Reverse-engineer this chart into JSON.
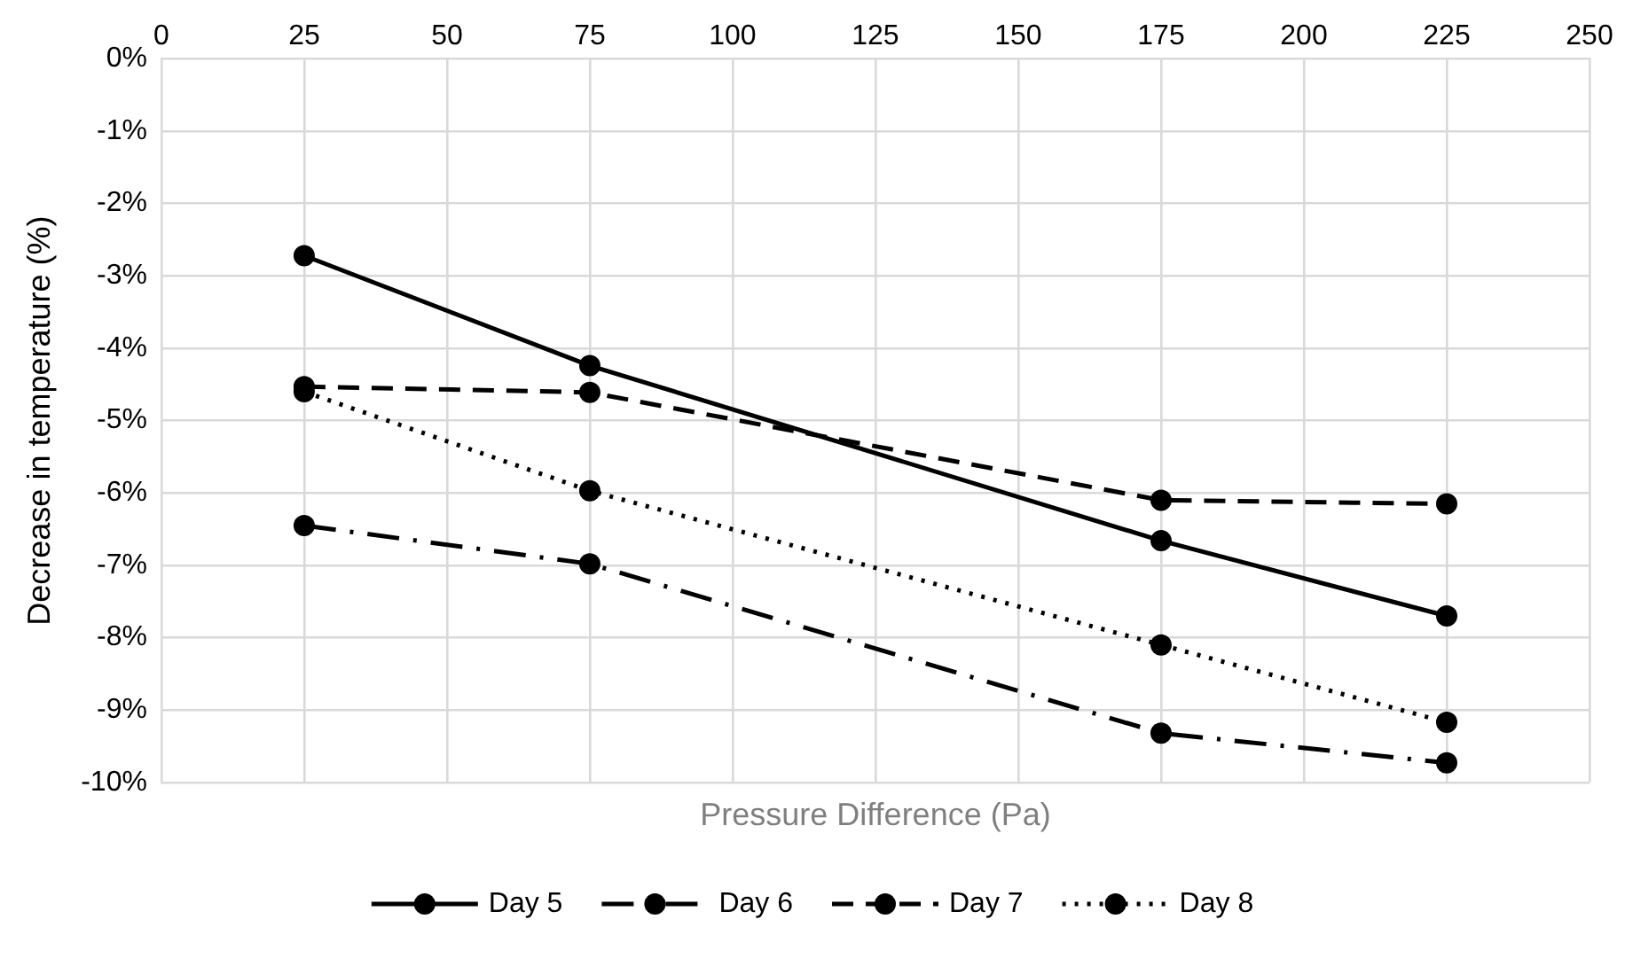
{
  "chart_data": {
    "type": "line",
    "xlabel": "Pressure Difference (Pa)",
    "ylabel": "Decrease in temperature (%)",
    "x": [
      25,
      75,
      175,
      225
    ],
    "series": [
      {
        "name": "Day 5",
        "color": "#000000",
        "line_style": "solid",
        "values": [
          -2.72,
          -4.24,
          -6.66,
          -7.7
        ]
      },
      {
        "name": "Day 6",
        "color": "#000000",
        "line_style": "dashdot",
        "values": [
          -6.45,
          -6.98,
          -9.32,
          -9.73
        ]
      },
      {
        "name": "Day 7",
        "color": "#000000",
        "line_style": "dashed",
        "values": [
          -4.53,
          -4.61,
          -6.1,
          -6.15
        ]
      },
      {
        "name": "Day 8",
        "color": "#000000",
        "line_style": "dotted",
        "values": [
          -4.6,
          -5.97,
          -8.1,
          -9.17
        ]
      }
    ],
    "xlim": [
      0,
      250
    ],
    "xticks": [
      0,
      25,
      50,
      75,
      100,
      125,
      150,
      175,
      200,
      225,
      250
    ],
    "ylim": [
      -10,
      0
    ],
    "yticks": [
      {
        "value": 0,
        "label": "0%"
      },
      {
        "value": -1,
        "label": "-1%"
      },
      {
        "value": -2,
        "label": "-2%"
      },
      {
        "value": -3,
        "label": "-3%"
      },
      {
        "value": -4,
        "label": "-4%"
      },
      {
        "value": -5,
        "label": "-5%"
      },
      {
        "value": -6,
        "label": "-6%"
      },
      {
        "value": -7,
        "label": "-7%"
      },
      {
        "value": -8,
        "label": "-8%"
      },
      {
        "value": -9,
        "label": "-9%"
      },
      {
        "value": -10,
        "label": "-10%"
      }
    ],
    "grid": true,
    "legend": "bottom",
    "marker": "circle"
  }
}
